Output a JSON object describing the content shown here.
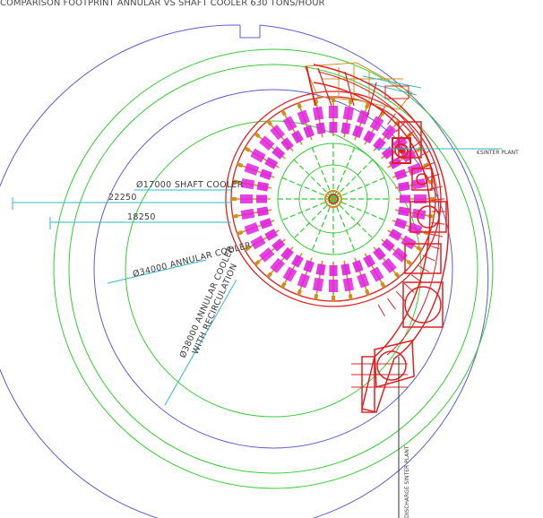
{
  "header_text": "COMPARISON FOOTPRINT ANNULAR VS SHAFT COOLER 630 TONS/HOUR",
  "labels": {
    "shaft_cooler": "Ø17000 SHAFT COOLER",
    "dim_22250": "22250",
    "dim_18250": "18250",
    "annular_cooler": "Ø34000 ANNULAR COOLER",
    "annular_recirc_line1": "Ø38000 ANNULAR COOLER",
    "annular_recirc_line2": "WITH RECIRCULATION",
    "sinter_plant": "€SINTER PLANT",
    "discharge_sinter_plant": "DISCHARGE SINTER PLANT"
  },
  "colors": {
    "outer_circle": "#5b5bd6",
    "green": "#33cc33",
    "red": "#e02020",
    "magenta": "#e020e0",
    "cyan": "#2fb8c8",
    "orange": "#d09020",
    "gray": "#7a7a7a"
  }
}
